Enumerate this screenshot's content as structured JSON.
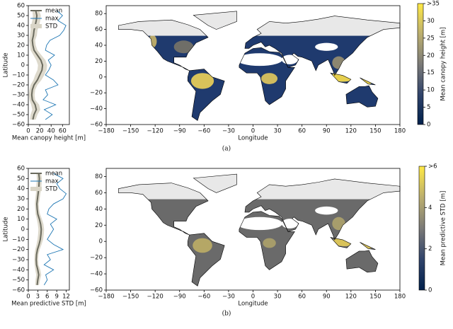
{
  "chart_data": [
    {
      "type": "profile",
      "ylabel": "Latitude",
      "xlabel": "Mean canopy height [m]",
      "latitudes": [
        -55,
        -50,
        -45,
        -40,
        -35,
        -30,
        -25,
        -20,
        -15,
        -10,
        -5,
        0,
        5,
        10,
        15,
        20,
        25,
        30,
        35,
        40,
        45,
        50,
        55
      ],
      "series": [
        {
          "name": "mean",
          "color": "#6b6b5e",
          "kind": "line",
          "values": [
            8,
            10,
            14,
            12,
            7,
            6,
            7,
            10,
            16,
            20,
            24,
            25,
            22,
            16,
            10,
            8,
            7,
            9,
            10,
            12,
            14,
            15,
            13
          ]
        },
        {
          "name": "max",
          "color": "#1f77b4",
          "kind": "line",
          "values": [
            30,
            42,
            28,
            48,
            26,
            34,
            30,
            52,
            44,
            30,
            36,
            40,
            35,
            46,
            30,
            32,
            38,
            55,
            62,
            66,
            52,
            60,
            50
          ]
        },
        {
          "name": "STD",
          "color": "#d9d5c7",
          "kind": "band",
          "values": [
            5,
            6,
            7,
            7,
            5,
            5,
            5,
            6,
            7,
            8,
            8,
            8,
            8,
            7,
            6,
            5,
            5,
            6,
            6,
            7,
            7,
            7,
            6
          ]
        }
      ],
      "xlim": [
        0,
        72
      ],
      "xticks": [
        0,
        20,
        40,
        60
      ],
      "ylim": [
        -60,
        60
      ],
      "yticks": [
        {
          "value": -60,
          "label": "−60"
        },
        {
          "value": -50,
          "label": "−50"
        },
        {
          "value": -40,
          "label": "−40"
        },
        {
          "value": -30,
          "label": "−30"
        },
        {
          "value": -20,
          "label": "−20"
        },
        {
          "value": -10,
          "label": "−10"
        },
        0,
        10,
        20,
        30,
        40,
        50,
        60
      ]
    },
    {
      "type": "map",
      "xlabel": "Longitude",
      "caption": "(a)",
      "xlim": [
        -180,
        180
      ],
      "ylim": [
        -60,
        90
      ],
      "xticks": [
        {
          "value": -180,
          "label": "−180"
        },
        {
          "value": -150,
          "label": "−150"
        },
        {
          "value": -120,
          "label": "−120"
        },
        {
          "value": -90,
          "label": "−90"
        },
        {
          "value": -60,
          "label": "−60"
        },
        {
          "value": -30,
          "label": "−30"
        },
        0,
        30,
        60,
        90,
        120,
        150,
        180
      ],
      "yticks": [
        {
          "value": -60,
          "label": "−60"
        },
        {
          "value": -40,
          "label": "−40"
        },
        {
          "value": -20,
          "label": "−20"
        },
        0,
        20,
        40,
        60,
        80
      ],
      "colorbar": {
        "label": "Mean canopy height [m]",
        "lim": [
          0,
          35
        ],
        "ticks": [
          0,
          5,
          10,
          15,
          20,
          25,
          30,
          {
            "value": 35,
            "label": ">35"
          }
        ]
      }
    },
    {
      "type": "profile",
      "ylabel": "Latitude",
      "xlabel": "Mean predictive STD [m]",
      "latitudes": [
        -55,
        -50,
        -45,
        -40,
        -35,
        -30,
        -25,
        -20,
        -15,
        -10,
        -5,
        0,
        5,
        10,
        15,
        20,
        25,
        30,
        35,
        40,
        45,
        50,
        55
      ],
      "series": [
        {
          "name": "mean",
          "color": "#6b6b5e",
          "kind": "line",
          "values": [
            2.8,
            3.0,
            3.3,
            3.0,
            2.6,
            2.5,
            2.6,
            2.9,
            3.4,
            3.8,
            4.0,
            4.1,
            3.9,
            3.5,
            3.0,
            2.8,
            2.7,
            2.9,
            3.1,
            3.3,
            3.4,
            3.5,
            3.3
          ]
        },
        {
          "name": "max",
          "color": "#1f77b4",
          "kind": "line",
          "values": [
            5,
            6,
            5.5,
            8,
            5,
            7,
            6,
            11,
            8,
            6,
            7,
            8,
            7,
            9,
            6,
            6.5,
            8,
            11,
            12,
            10,
            9,
            11,
            8
          ]
        },
        {
          "name": "STD",
          "color": "#d9d5c7",
          "kind": "band",
          "values": [
            0.6,
            0.7,
            0.8,
            0.8,
            0.6,
            0.6,
            0.6,
            0.7,
            0.8,
            0.9,
            0.9,
            0.9,
            0.9,
            0.8,
            0.7,
            0.6,
            0.6,
            0.7,
            0.7,
            0.8,
            0.8,
            0.8,
            0.7
          ]
        }
      ],
      "xlim": [
        0,
        13
      ],
      "xticks": [
        0,
        3,
        6,
        9,
        12
      ],
      "ylim": [
        -60,
        60
      ],
      "yticks": [
        {
          "value": -60,
          "label": "−60"
        },
        {
          "value": -50,
          "label": "−50"
        },
        {
          "value": -40,
          "label": "−40"
        },
        {
          "value": -30,
          "label": "−30"
        },
        {
          "value": -20,
          "label": "−20"
        },
        {
          "value": -10,
          "label": "−10"
        },
        0,
        10,
        20,
        30,
        40,
        50,
        60
      ]
    },
    {
      "type": "map",
      "xlabel": "Longitude",
      "caption": "(b)",
      "xlim": [
        -180,
        180
      ],
      "ylim": [
        -60,
        90
      ],
      "xticks": [
        {
          "value": -180,
          "label": "−180"
        },
        {
          "value": -150,
          "label": "−150"
        },
        {
          "value": -120,
          "label": "−120"
        },
        {
          "value": -90,
          "label": "−90"
        },
        {
          "value": -60,
          "label": "−60"
        },
        {
          "value": -30,
          "label": "−30"
        },
        0,
        30,
        60,
        90,
        120,
        150,
        180
      ],
      "yticks": [
        {
          "value": -60,
          "label": "−60"
        },
        {
          "value": -40,
          "label": "−40"
        },
        {
          "value": -20,
          "label": "−20"
        },
        0,
        20,
        40,
        60,
        80
      ],
      "colorbar": {
        "label": "Mean predictive STD [m]",
        "lim": [
          0,
          6
        ],
        "ticks": [
          0,
          2,
          4,
          {
            "value": 6,
            "label": ">6"
          }
        ]
      }
    }
  ]
}
